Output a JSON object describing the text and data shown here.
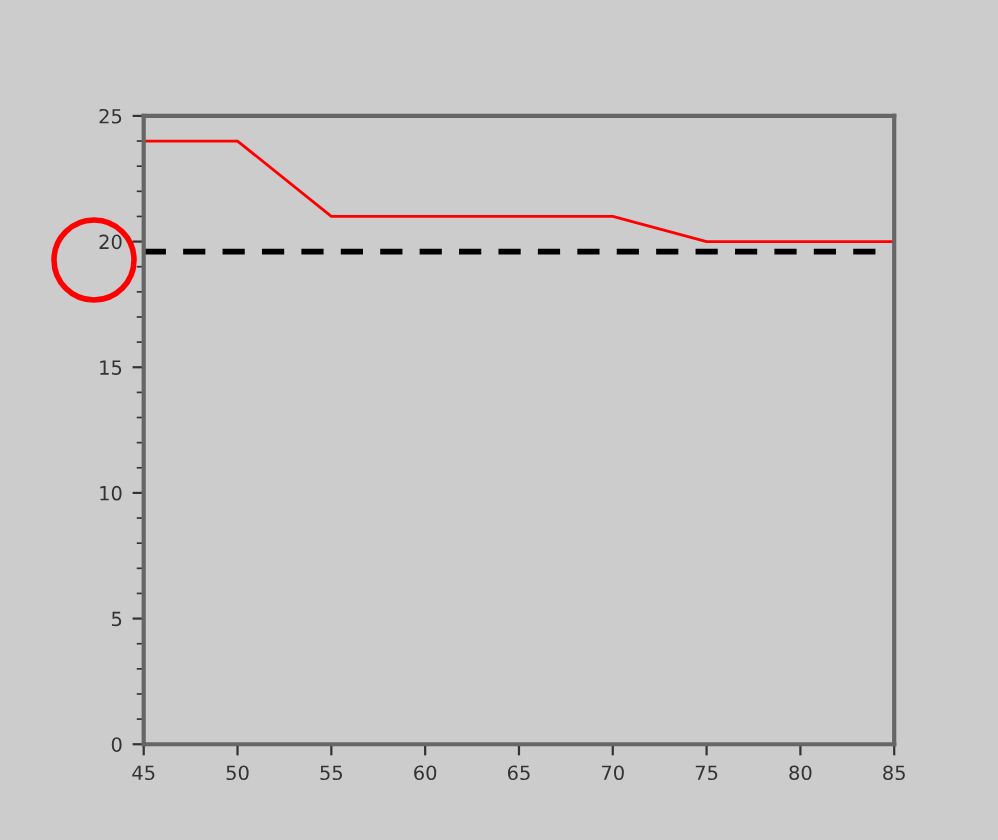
{
  "chart_data": {
    "type": "line",
    "xlim": [
      45,
      85
    ],
    "ylim": [
      0,
      25
    ],
    "xticks": [
      45,
      50,
      55,
      60,
      65,
      70,
      75,
      80,
      85
    ],
    "yticks": [
      0,
      {
        "value": 1,
        "label": null
      },
      {
        "value": 2,
        "label": null
      },
      {
        "value": 3,
        "label": null
      },
      {
        "value": 4,
        "label": null
      },
      5,
      {
        "value": 6,
        "label": null
      },
      {
        "value": 7,
        "label": null
      },
      {
        "value": 8,
        "label": null
      },
      {
        "value": 9,
        "label": null
      },
      10,
      {
        "value": 11,
        "label": null
      },
      {
        "value": 12,
        "label": null
      },
      {
        "value": 13,
        "label": null
      },
      {
        "value": 14,
        "label": null
      },
      15,
      {
        "value": 16,
        "label": null
      },
      {
        "value": 17,
        "label": null
      },
      {
        "value": 18,
        "label": null
      },
      {
        "value": 19,
        "label": null
      },
      20,
      {
        "value": 21,
        "label": null
      },
      {
        "value": 22,
        "label": null
      },
      {
        "value": 23,
        "label": null
      },
      {
        "value": 24,
        "label": null
      },
      25
    ],
    "grid": false,
    "legend": false,
    "series": [
      {
        "color": "#ff0000",
        "x": [
          45,
          50,
          55,
          70,
          75,
          85
        ],
        "values": [
          24,
          24,
          21,
          21,
          20,
          20
        ],
        "line_style": "solid"
      },
      {
        "color": "#000000",
        "x": [
          45,
          84
        ],
        "values": [
          19.6,
          19.6
        ],
        "line_style": "dashed"
      }
    ]
  }
}
